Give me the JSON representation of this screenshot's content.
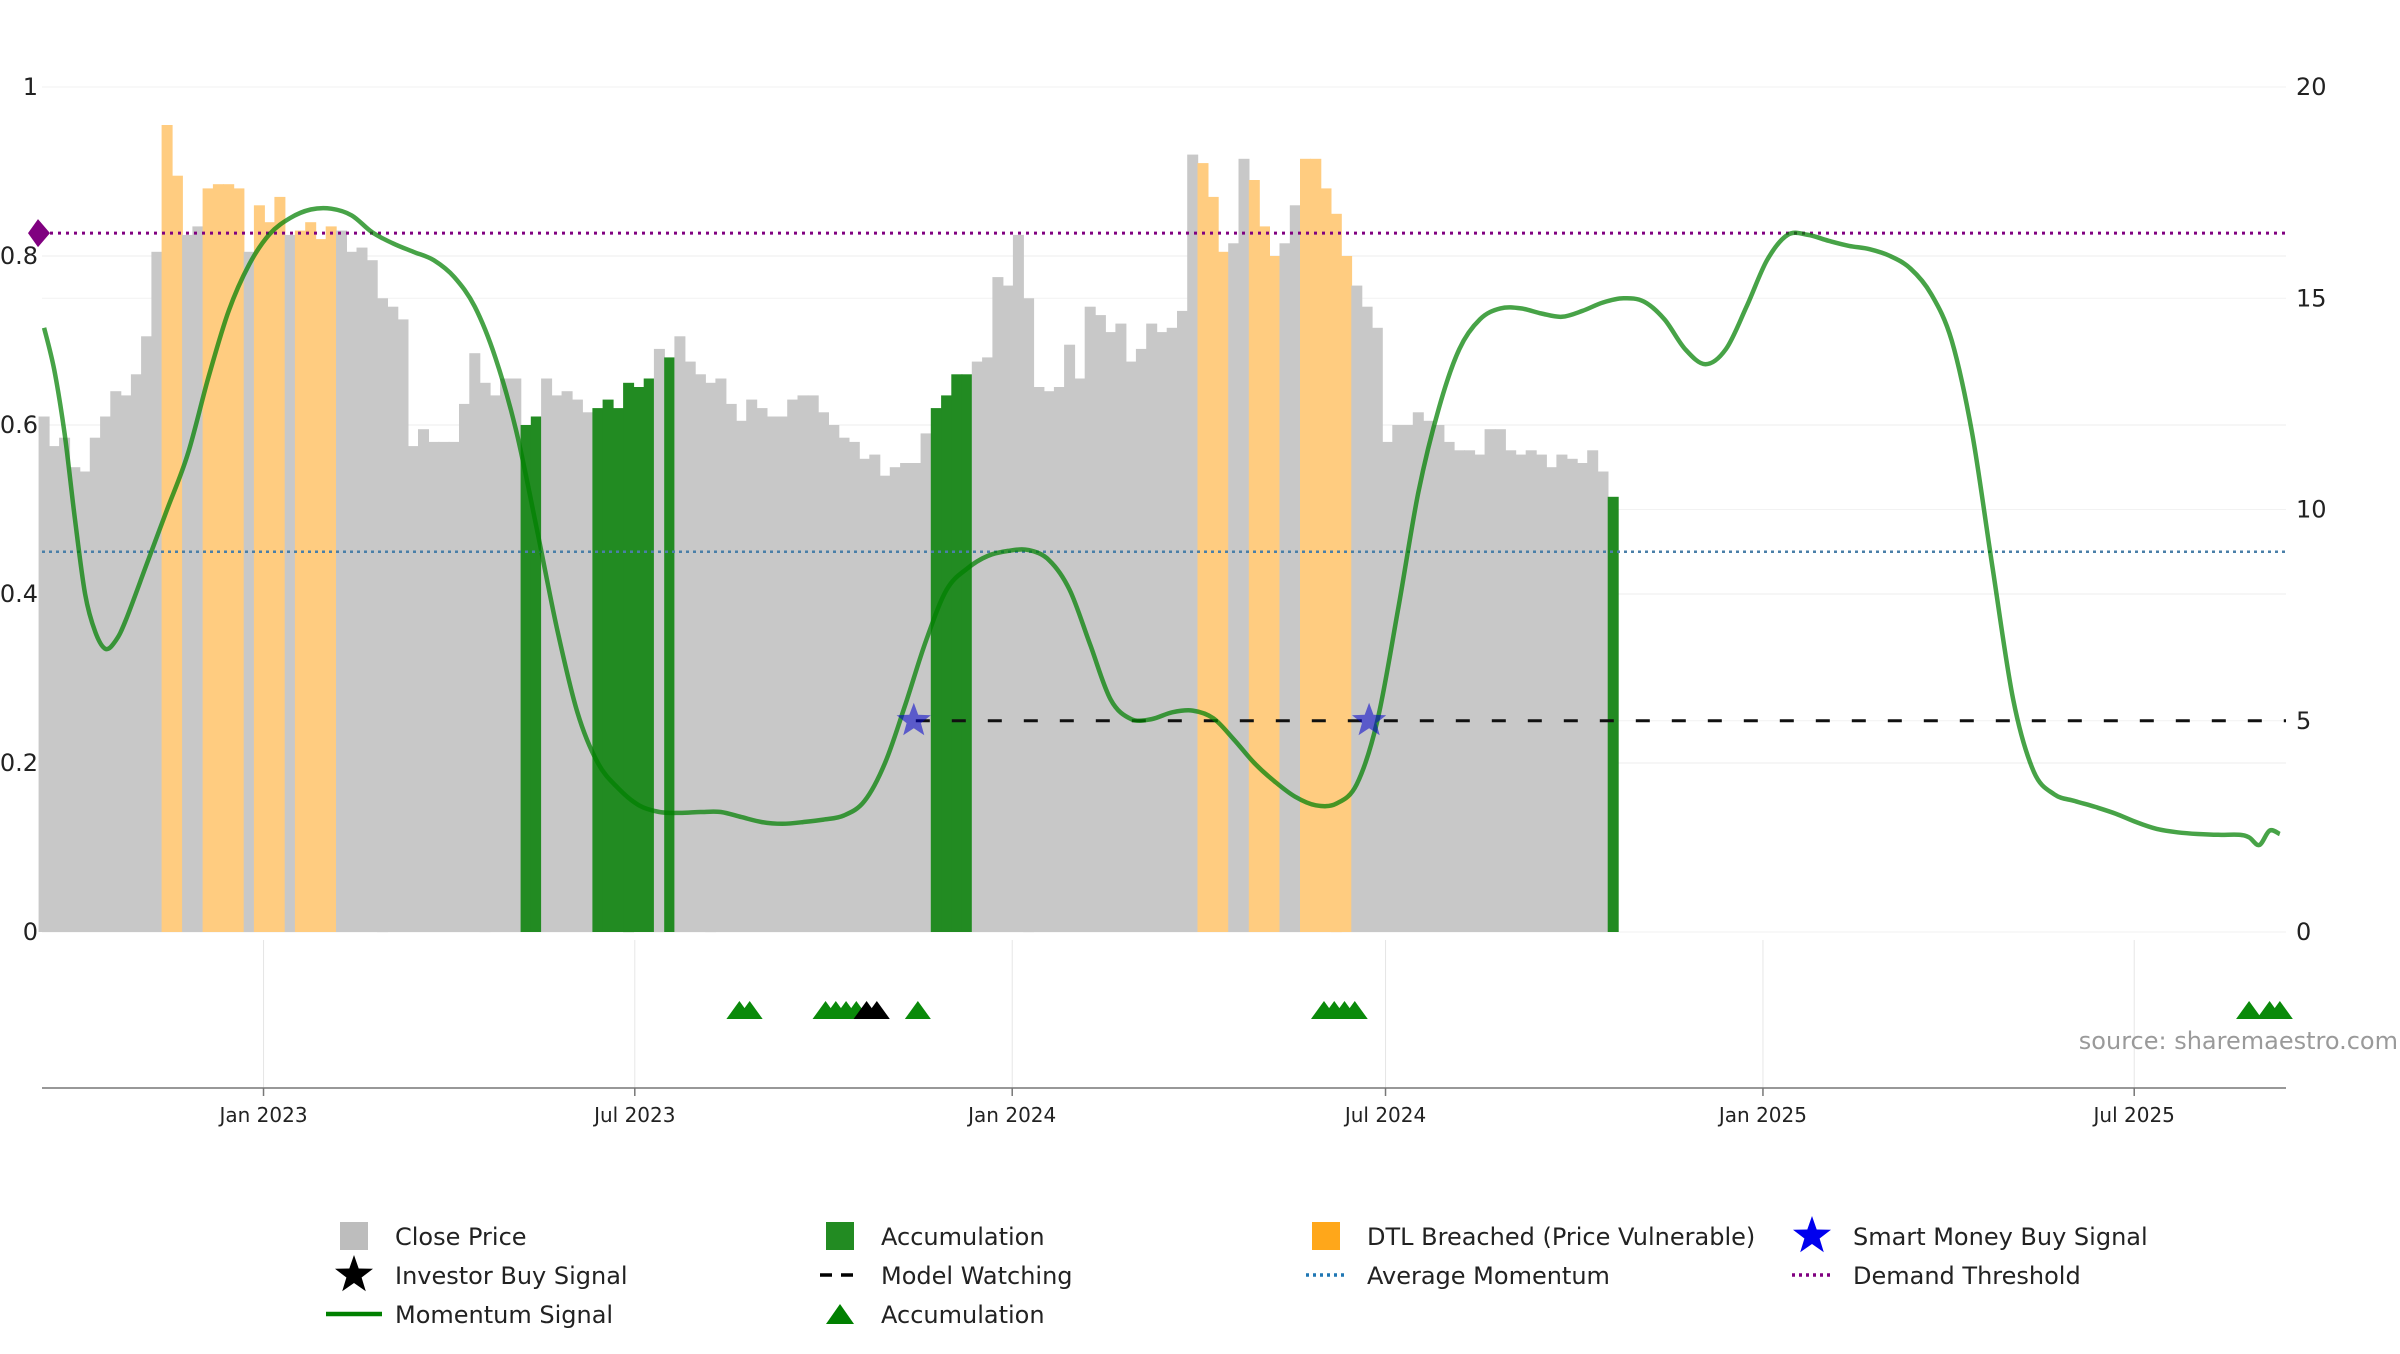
{
  "chart_data": {
    "type": "bar",
    "source": "source: sharemaestro.com",
    "left_axis": {
      "ticks": [
        "0",
        "0.2",
        "0.4",
        "0.6",
        "0.8",
        "1"
      ],
      "range": [
        0,
        1
      ]
    },
    "right_axis": {
      "ticks": [
        "0",
        "5",
        "10",
        "15",
        "20"
      ],
      "range": [
        0,
        20
      ]
    },
    "x_axis": {
      "range": [
        "2022-09-15",
        "2025-09-13"
      ],
      "ticks": [
        {
          "date": "2023-01-01",
          "label": "Jan 2023"
        },
        {
          "date": "2023-07-01",
          "label": "Jul 2023"
        },
        {
          "date": "2024-01-01",
          "label": "Jan 2024"
        },
        {
          "date": "2024-07-01",
          "label": "Jul 2024"
        },
        {
          "date": "2025-01-01",
          "label": "Jan 2025"
        },
        {
          "date": "2025-07-01",
          "label": "Jul 2025"
        }
      ]
    },
    "grid": true,
    "legend_position": "bottom",
    "colors": {
      "close_price": "#c8c8c8",
      "accumulation": "#228b22",
      "dtl_breached": "#ffcc80",
      "momentum": "#008000",
      "model_watching": "#111111",
      "average_momentum": "#4a7fa8",
      "demand_threshold": "#800080",
      "smart_money": "#0000cc"
    },
    "price_bars": {
      "start": "2022-09-16",
      "step_days": 5,
      "values": [
        12.2,
        11.5,
        11.7,
        11.0,
        10.9,
        11.7,
        12.2,
        12.8,
        12.7,
        13.2,
        14.1,
        16.1,
        19.1,
        17.9,
        16.5,
        16.7,
        17.6,
        17.7,
        17.7,
        17.6,
        16.1,
        17.2,
        16.8,
        17.4,
        16.5,
        16.6,
        16.8,
        16.4,
        16.7,
        16.6,
        16.1,
        16.2,
        15.9,
        15.0,
        14.8,
        14.5,
        11.5,
        11.9,
        11.6,
        11.6,
        11.6,
        12.5,
        13.7,
        13.0,
        12.7,
        13.1,
        13.1,
        12.0,
        12.2,
        13.1,
        12.7,
        12.8,
        12.6,
        12.3,
        12.4,
        12.6,
        12.4,
        13.0,
        12.9,
        13.1,
        13.8,
        13.6,
        14.1,
        13.5,
        13.2,
        13.0,
        13.1,
        12.5,
        12.1,
        12.6,
        12.4,
        12.2,
        12.2,
        12.6,
        12.7,
        12.7,
        12.3,
        12.0,
        11.7,
        11.6,
        11.2,
        11.3,
        10.8,
        11.0,
        11.1,
        11.1,
        11.8,
        12.4,
        12.7,
        13.2,
        13.2,
        13.5,
        13.6,
        15.5,
        15.3,
        16.5,
        15.0,
        12.9,
        12.8,
        12.9,
        13.9,
        13.1,
        14.8,
        14.6,
        14.2,
        14.4,
        13.5,
        13.8,
        14.4,
        14.2,
        14.3,
        14.7,
        18.4,
        18.2,
        17.4,
        16.1,
        16.3,
        18.3,
        17.8,
        16.7,
        16.0,
        16.3,
        17.2,
        18.3,
        18.3,
        17.6,
        17.0,
        16.0,
        15.3,
        14.8,
        14.3,
        11.6,
        12.0,
        12.0,
        12.3,
        12.1,
        12.0,
        11.6,
        11.4,
        11.4,
        11.3,
        11.9,
        11.9,
        11.4,
        11.3,
        11.4,
        11.3,
        11.0,
        11.3,
        11.2,
        11.1,
        11.4,
        10.9,
        10.3
      ],
      "kind": [
        "price",
        "price",
        "price",
        "price",
        "price",
        "price",
        "price",
        "price",
        "price",
        "price",
        "price",
        "price",
        "dtl",
        "dtl",
        "price",
        "price",
        "dtl",
        "dtl",
        "dtl",
        "dtl",
        "price",
        "dtl",
        "dtl",
        "dtl",
        "price",
        "dtl",
        "dtl",
        "dtl",
        "dtl",
        "price",
        "price",
        "price",
        "price",
        "price",
        "price",
        "price",
        "price",
        "price",
        "price",
        "price",
        "price",
        "price",
        "price",
        "price",
        "price",
        "price",
        "price",
        "accumulation",
        "accumulation",
        "price",
        "price",
        "price",
        "price",
        "price",
        "accumulation",
        "accumulation",
        "accumulation",
        "accumulation",
        "accumulation",
        "accumulation",
        "price",
        "accumulation",
        "price",
        "price",
        "price",
        "price",
        "price",
        "price",
        "price",
        "price",
        "price",
        "price",
        "price",
        "price",
        "price",
        "price",
        "price",
        "price",
        "price",
        "price",
        "price",
        "price",
        "price",
        "price",
        "price",
        "price",
        "price",
        "accumulation",
        "accumulation",
        "accumulation",
        "accumulation",
        "price",
        "price",
        "price",
        "price",
        "price",
        "price",
        "price",
        "price",
        "price",
        "price",
        "price",
        "price",
        "price",
        "price",
        "price",
        "price",
        "price",
        "price",
        "price",
        "price",
        "price",
        "price",
        "dtl",
        "dtl",
        "dtl",
        "price",
        "price",
        "dtl",
        "dtl",
        "dtl",
        "price",
        "price",
        "dtl",
        "dtl",
        "dtl",
        "dtl",
        "dtl",
        "price",
        "price",
        "price",
        "price",
        "price",
        "price",
        "price",
        "price",
        "price",
        "price",
        "price",
        "price",
        "price",
        "price",
        "price",
        "price",
        "price",
        "price",
        "price",
        "price",
        "price",
        "price",
        "price",
        "price",
        "price",
        "accumulation",
        "price",
        "price",
        "accumulation",
        "accumulation"
      ]
    },
    "momentum_signal": {
      "name": "Momentum Signal",
      "points": [
        [
          "2022-09-16",
          0.715
        ],
        [
          "2022-09-21",
          0.665
        ],
        [
          "2022-09-26",
          0.59
        ],
        [
          "2022-10-01",
          0.49
        ],
        [
          "2022-10-06",
          0.4
        ],
        [
          "2022-10-11",
          0.355
        ],
        [
          "2022-10-16",
          0.335
        ],
        [
          "2022-10-21",
          0.345
        ],
        [
          "2022-10-26",
          0.37
        ],
        [
          "2022-11-05",
          0.435
        ],
        [
          "2022-11-15",
          0.5
        ],
        [
          "2022-11-25",
          0.565
        ],
        [
          "2022-12-05",
          0.655
        ],
        [
          "2022-12-15",
          0.735
        ],
        [
          "2022-12-25",
          0.79
        ],
        [
          "2023-01-04",
          0.826
        ],
        [
          "2023-01-14",
          0.845
        ],
        [
          "2023-01-24",
          0.855
        ],
        [
          "2023-02-03",
          0.856
        ],
        [
          "2023-02-13",
          0.848
        ],
        [
          "2023-02-23",
          0.828
        ],
        [
          "2023-03-05",
          0.815
        ],
        [
          "2023-03-15",
          0.805
        ],
        [
          "2023-03-25",
          0.795
        ],
        [
          "2023-04-04",
          0.775
        ],
        [
          "2023-04-14",
          0.74
        ],
        [
          "2023-04-24",
          0.68
        ],
        [
          "2023-05-04",
          0.595
        ],
        [
          "2023-05-14",
          0.48
        ],
        [
          "2023-05-24",
          0.36
        ],
        [
          "2023-06-03",
          0.26
        ],
        [
          "2023-06-13",
          0.2
        ],
        [
          "2023-06-23",
          0.17
        ],
        [
          "2023-07-03",
          0.15
        ],
        [
          "2023-07-13",
          0.142
        ],
        [
          "2023-07-23",
          0.141
        ],
        [
          "2023-08-02",
          0.142
        ],
        [
          "2023-08-12",
          0.142
        ],
        [
          "2023-08-22",
          0.136
        ],
        [
          "2023-09-01",
          0.13
        ],
        [
          "2023-09-11",
          0.128
        ],
        [
          "2023-09-21",
          0.13
        ],
        [
          "2023-10-01",
          0.133
        ],
        [
          "2023-10-11",
          0.138
        ],
        [
          "2023-10-21",
          0.155
        ],
        [
          "2023-10-31",
          0.2
        ],
        [
          "2023-11-10",
          0.27
        ],
        [
          "2023-11-20",
          0.345
        ],
        [
          "2023-11-30",
          0.405
        ],
        [
          "2023-12-10",
          0.43
        ],
        [
          "2023-12-20",
          0.445
        ],
        [
          "2023-12-30",
          0.451
        ],
        [
          "2024-01-09",
          0.452
        ],
        [
          "2024-01-19",
          0.44
        ],
        [
          "2024-01-29",
          0.405
        ],
        [
          "2024-02-08",
          0.34
        ],
        [
          "2024-02-18",
          0.275
        ],
        [
          "2024-02-28",
          0.252
        ],
        [
          "2024-03-09",
          0.252
        ],
        [
          "2024-03-19",
          0.26
        ],
        [
          "2024-03-29",
          0.262
        ],
        [
          "2024-04-08",
          0.253
        ],
        [
          "2024-04-18",
          0.228
        ],
        [
          "2024-04-28",
          0.2
        ],
        [
          "2024-05-08",
          0.178
        ],
        [
          "2024-05-18",
          0.16
        ],
        [
          "2024-05-28",
          0.15
        ],
        [
          "2024-06-07",
          0.152
        ],
        [
          "2024-06-17",
          0.175
        ],
        [
          "2024-06-27",
          0.25
        ],
        [
          "2024-07-07",
          0.38
        ],
        [
          "2024-07-17",
          0.52
        ],
        [
          "2024-07-27",
          0.62
        ],
        [
          "2024-08-06",
          0.69
        ],
        [
          "2024-08-16",
          0.725
        ],
        [
          "2024-08-26",
          0.738
        ],
        [
          "2024-09-05",
          0.738
        ],
        [
          "2024-09-15",
          0.732
        ],
        [
          "2024-09-25",
          0.728
        ],
        [
          "2024-10-05",
          0.735
        ],
        [
          "2024-10-15",
          0.745
        ],
        [
          "2024-10-25",
          0.75
        ],
        [
          "2024-11-04",
          0.746
        ],
        [
          "2024-11-14",
          0.725
        ],
        [
          "2024-11-24",
          0.69
        ],
        [
          "2024-12-04",
          0.672
        ],
        [
          "2024-12-14",
          0.69
        ],
        [
          "2024-12-24",
          0.74
        ],
        [
          "2025-01-03",
          0.795
        ],
        [
          "2025-01-13",
          0.825
        ],
        [
          "2025-01-23",
          0.825
        ],
        [
          "2025-02-02",
          0.818
        ],
        [
          "2025-02-12",
          0.812
        ],
        [
          "2025-02-22",
          0.808
        ],
        [
          "2025-03-04",
          0.8
        ],
        [
          "2025-03-14",
          0.785
        ],
        [
          "2025-03-24",
          0.755
        ],
        [
          "2025-04-03",
          0.7
        ],
        [
          "2025-04-13",
          0.59
        ],
        [
          "2025-04-23",
          0.43
        ],
        [
          "2025-05-03",
          0.275
        ],
        [
          "2025-05-13",
          0.19
        ],
        [
          "2025-05-23",
          0.163
        ],
        [
          "2025-06-02",
          0.155
        ],
        [
          "2025-06-12",
          0.148
        ],
        [
          "2025-06-22",
          0.14
        ],
        [
          "2025-07-02",
          0.13
        ],
        [
          "2025-07-12",
          0.122
        ],
        [
          "2025-07-22",
          0.118
        ],
        [
          "2025-08-01",
          0.116
        ],
        [
          "2025-08-11",
          0.115
        ],
        [
          "2025-08-21",
          0.115
        ],
        [
          "2025-08-26",
          0.112
        ],
        [
          "2025-08-31",
          0.103
        ],
        [
          "2025-09-05",
          0.12
        ],
        [
          "2025-09-10",
          0.116
        ]
      ]
    },
    "model_watching": {
      "name": "Model Watching",
      "y": 5,
      "from": "2023-11-15",
      "to": "2025-09-13"
    },
    "average_momentum": {
      "name": "Average Momentum",
      "y": 0.45
    },
    "demand_threshold": {
      "name": "Demand Threshold",
      "y": 0.827
    },
    "smart_money_signals": {
      "name": "Smart Money Buy Signal",
      "dates": [
        "2023-11-14",
        "2024-06-23"
      ],
      "y": 5
    },
    "accumulation_triangles": {
      "name": "Accumulation",
      "dates": [
        "2023-08-21",
        "2023-08-26",
        "2023-10-02",
        "2023-10-07",
        "2023-10-12",
        "2023-10-17",
        "2023-11-16",
        "2024-06-01",
        "2024-06-06",
        "2024-06-11",
        "2024-06-16",
        "2025-08-26",
        "2025-09-05",
        "2025-09-10"
      ]
    },
    "investor_triangles": {
      "dates": [
        "2023-10-22",
        "2023-10-27"
      ]
    }
  },
  "legend": {
    "items": [
      {
        "label": "Close Price",
        "symbol": "square",
        "color": "#bdbdbd"
      },
      {
        "label": "Accumulation",
        "symbol": "square",
        "color": "#228b22"
      },
      {
        "label": "DTL Breached (Price Vulnerable)",
        "symbol": "square",
        "color": "#ffa71a"
      },
      {
        "label": "Smart Money Buy Signal",
        "symbol": "star",
        "color": "#0000ee"
      },
      {
        "label": "Investor Buy Signal",
        "symbol": "star",
        "color": "#000000"
      },
      {
        "label": "Model Watching",
        "symbol": "dash",
        "color": "#000000"
      },
      {
        "label": "Average Momentum",
        "symbol": "dotted",
        "color": "#1f77b4"
      },
      {
        "label": "Demand Threshold",
        "symbol": "dotted",
        "color": "#800080"
      },
      {
        "label": "Momentum Signal",
        "symbol": "line",
        "color": "#008000"
      },
      {
        "label": "Accumulation",
        "symbol": "triangle",
        "color": "#008000"
      }
    ]
  }
}
